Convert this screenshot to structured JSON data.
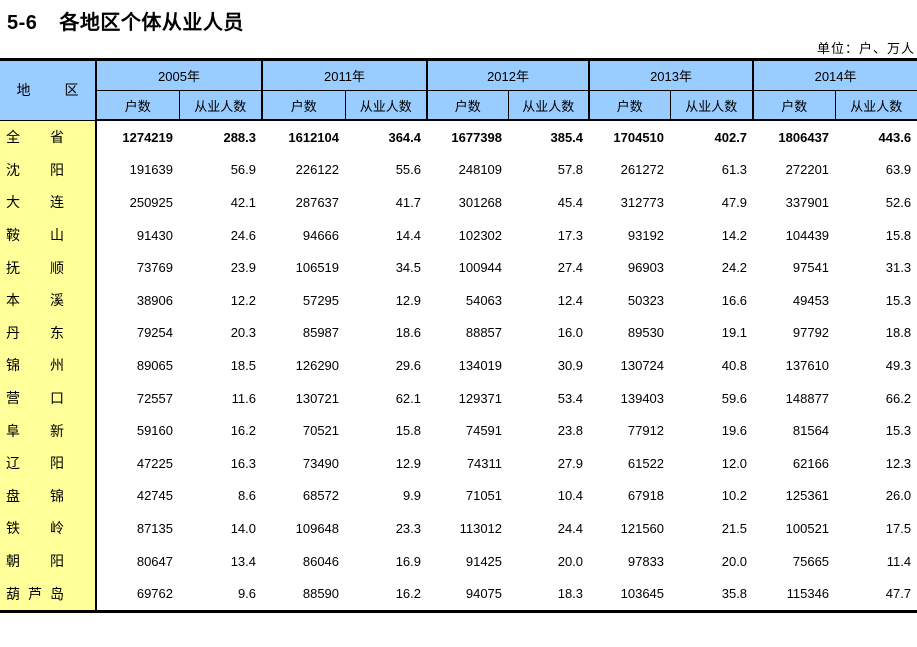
{
  "page": {
    "title_no": "5-6",
    "title_text": "各地区个体从业人员",
    "unit_note": "单位：户、万人"
  },
  "table": {
    "region_header_chars": [
      "地",
      "区"
    ],
    "years": [
      "2005年",
      "2011年",
      "2012年",
      "2013年",
      "2014年"
    ],
    "sub_headers": [
      "户数",
      "从业人数"
    ],
    "colors": {
      "header_bg": "#99CCFF",
      "region_bg": "#FFFF99",
      "border": "#000000"
    },
    "rows": [
      {
        "region": "全省",
        "bold": true,
        "values": [
          "1274219",
          "288.3",
          "1612104",
          "364.4",
          "1677398",
          "385.4",
          "1704510",
          "402.7",
          "1806437",
          "443.6"
        ]
      },
      {
        "region": "沈阳",
        "bold": false,
        "values": [
          "191639",
          "56.9",
          "226122",
          "55.6",
          "248109",
          "57.8",
          "261272",
          "61.3",
          "272201",
          "63.9"
        ]
      },
      {
        "region": "大连",
        "bold": false,
        "values": [
          "250925",
          "42.1",
          "287637",
          "41.7",
          "301268",
          "45.4",
          "312773",
          "47.9",
          "337901",
          "52.6"
        ]
      },
      {
        "region": "鞍山",
        "bold": false,
        "values": [
          "91430",
          "24.6",
          "94666",
          "14.4",
          "102302",
          "17.3",
          "93192",
          "14.2",
          "104439",
          "15.8"
        ]
      },
      {
        "region": "抚顺",
        "bold": false,
        "values": [
          "73769",
          "23.9",
          "106519",
          "34.5",
          "100944",
          "27.4",
          "96903",
          "24.2",
          "97541",
          "31.3"
        ]
      },
      {
        "region": "本溪",
        "bold": false,
        "values": [
          "38906",
          "12.2",
          "57295",
          "12.9",
          "54063",
          "12.4",
          "50323",
          "16.6",
          "49453",
          "15.3"
        ]
      },
      {
        "region": "丹东",
        "bold": false,
        "values": [
          "79254",
          "20.3",
          "85987",
          "18.6",
          "88857",
          "16.0",
          "89530",
          "19.1",
          "97792",
          "18.8"
        ]
      },
      {
        "region": "锦州",
        "bold": false,
        "values": [
          "89065",
          "18.5",
          "126290",
          "29.6",
          "134019",
          "30.9",
          "130724",
          "40.8",
          "137610",
          "49.3"
        ]
      },
      {
        "region": "营口",
        "bold": false,
        "values": [
          "72557",
          "11.6",
          "130721",
          "62.1",
          "129371",
          "53.4",
          "139403",
          "59.6",
          "148877",
          "66.2"
        ]
      },
      {
        "region": "阜新",
        "bold": false,
        "values": [
          "59160",
          "16.2",
          "70521",
          "15.8",
          "74591",
          "23.8",
          "77912",
          "19.6",
          "81564",
          "15.3"
        ]
      },
      {
        "region": "辽阳",
        "bold": false,
        "values": [
          "47225",
          "16.3",
          "73490",
          "12.9",
          "74311",
          "27.9",
          "61522",
          "12.0",
          "62166",
          "12.3"
        ]
      },
      {
        "region": "盘锦",
        "bold": false,
        "values": [
          "42745",
          "8.6",
          "68572",
          "9.9",
          "71051",
          "10.4",
          "67918",
          "10.2",
          "125361",
          "26.0"
        ]
      },
      {
        "region": "铁岭",
        "bold": false,
        "values": [
          "87135",
          "14.0",
          "109648",
          "23.3",
          "113012",
          "24.4",
          "121560",
          "21.5",
          "100521",
          "17.5"
        ]
      },
      {
        "region": "朝阳",
        "bold": false,
        "values": [
          "80647",
          "13.4",
          "86046",
          "16.9",
          "91425",
          "20.0",
          "97833",
          "20.0",
          "75665",
          "11.4"
        ]
      },
      {
        "region": "葫芦岛",
        "bold": false,
        "values": [
          "69762",
          "9.6",
          "88590",
          "16.2",
          "94075",
          "18.3",
          "103645",
          "35.8",
          "115346",
          "47.7"
        ]
      }
    ]
  }
}
